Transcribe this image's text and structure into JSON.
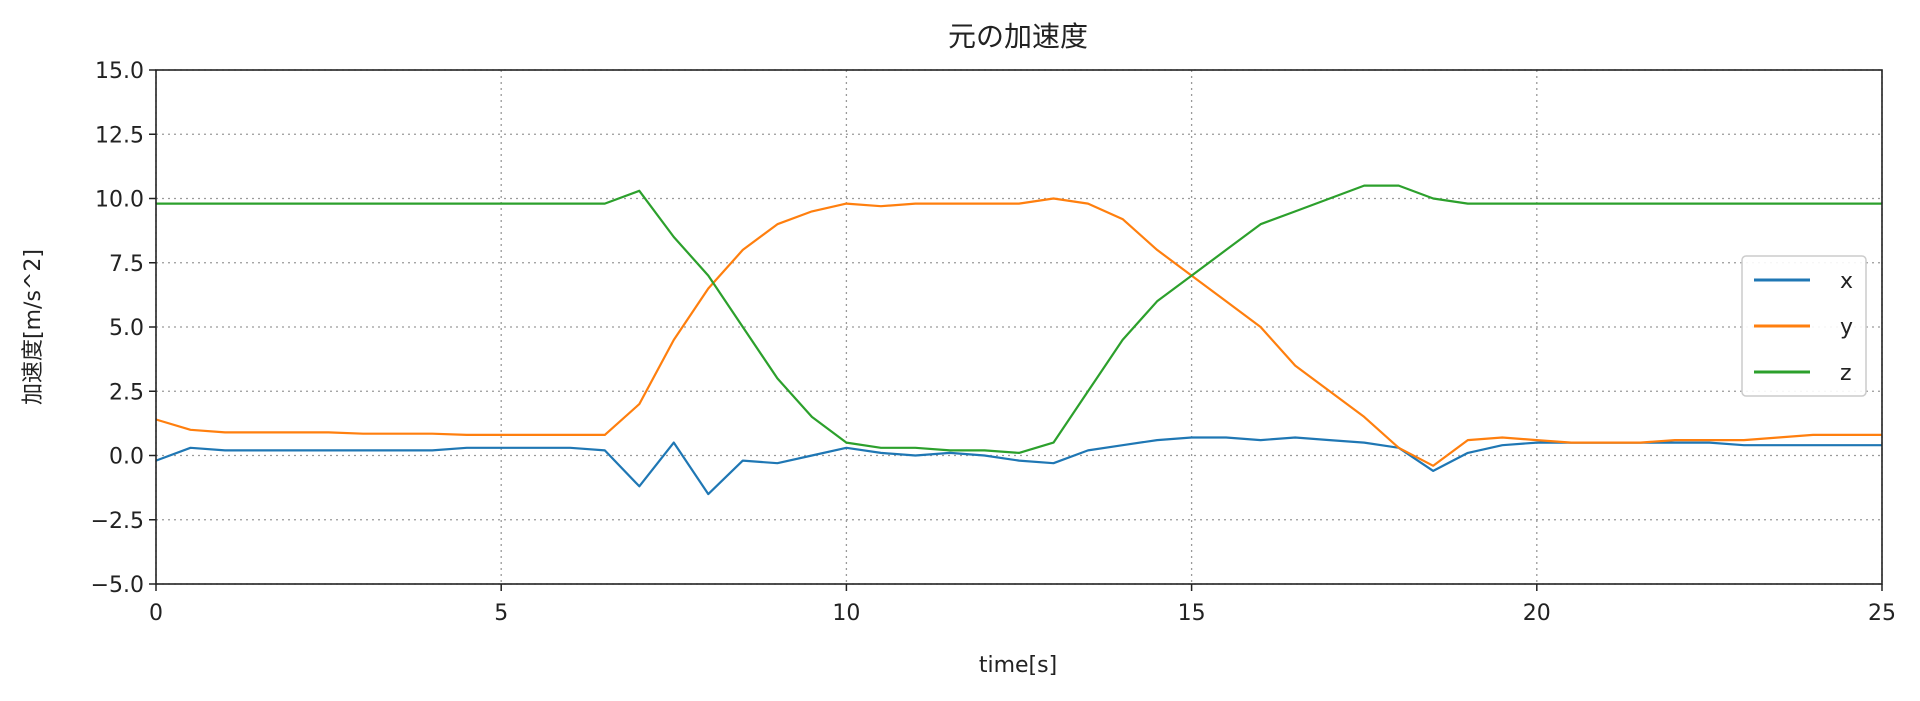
{
  "chart_data": {
    "type": "line",
    "title": "元の加速度",
    "xlabel": "time[s]",
    "ylabel": "加速度[m/s^2]",
    "xlim": [
      0,
      25
    ],
    "ylim": [
      -5.0,
      15.0
    ],
    "xticks": [
      "0",
      "5",
      "10",
      "15",
      "20",
      "25"
    ],
    "yticks": [
      "−5.0",
      "−2.5",
      "0.0",
      "2.5",
      "5.0",
      "7.5",
      "10.0",
      "12.5",
      "15.0"
    ],
    "grid": true,
    "legend": "center-right",
    "x": [
      0,
      0.5,
      1,
      1.5,
      2,
      2.5,
      3,
      3.5,
      4,
      4.5,
      5,
      5.5,
      6,
      6.5,
      7,
      7.5,
      8,
      8.5,
      9,
      9.5,
      10,
      10.5,
      11,
      11.5,
      12,
      12.5,
      13,
      13.5,
      14,
      14.5,
      15,
      15.5,
      16,
      16.5,
      17,
      17.5,
      18,
      18.5,
      19,
      19.5,
      20,
      20.5,
      21,
      21.5,
      22,
      22.5,
      23,
      23.5,
      24,
      24.5,
      25
    ],
    "series": [
      {
        "name": "x",
        "color": "#1f77b4",
        "values": [
          -0.2,
          0.3,
          0.2,
          0.2,
          0.2,
          0.2,
          0.2,
          0.2,
          0.2,
          0.3,
          0.3,
          0.3,
          0.3,
          0.2,
          -1.2,
          0.5,
          -1.5,
          -0.2,
          -0.3,
          0.0,
          0.3,
          0.1,
          0.0,
          0.1,
          0.0,
          -0.2,
          -0.3,
          0.2,
          0.4,
          0.6,
          0.7,
          0.7,
          0.6,
          0.7,
          0.6,
          0.5,
          0.3,
          -0.6,
          0.1,
          0.4,
          0.5,
          0.5,
          0.5,
          0.5,
          0.5,
          0.5,
          0.4,
          0.4,
          0.4,
          0.4,
          0.4
        ]
      },
      {
        "name": "y",
        "color": "#ff7f0e",
        "values": [
          1.4,
          1.0,
          0.9,
          0.9,
          0.9,
          0.9,
          0.85,
          0.85,
          0.85,
          0.8,
          0.8,
          0.8,
          0.8,
          0.8,
          2.0,
          4.5,
          6.5,
          8.0,
          9.0,
          9.5,
          9.8,
          9.7,
          9.8,
          9.8,
          9.8,
          9.8,
          10.0,
          9.8,
          9.2,
          8.0,
          7.0,
          6.0,
          5.0,
          3.5,
          2.5,
          1.5,
          0.3,
          -0.4,
          0.6,
          0.7,
          0.6,
          0.5,
          0.5,
          0.5,
          0.6,
          0.6,
          0.6,
          0.7,
          0.8,
          0.8,
          0.8
        ]
      },
      {
        "name": "z",
        "color": "#2ca02c",
        "values": [
          9.8,
          9.8,
          9.8,
          9.8,
          9.8,
          9.8,
          9.8,
          9.8,
          9.8,
          9.8,
          9.8,
          9.8,
          9.8,
          9.8,
          10.3,
          8.5,
          7.0,
          5.0,
          3.0,
          1.5,
          0.5,
          0.3,
          0.3,
          0.2,
          0.2,
          0.1,
          0.5,
          2.5,
          4.5,
          6.0,
          7.0,
          8.0,
          9.0,
          9.5,
          10.0,
          10.5,
          10.5,
          10.0,
          9.8,
          9.8,
          9.8,
          9.8,
          9.8,
          9.8,
          9.8,
          9.8,
          9.8,
          9.8,
          9.8,
          9.8,
          9.8
        ]
      }
    ]
  }
}
